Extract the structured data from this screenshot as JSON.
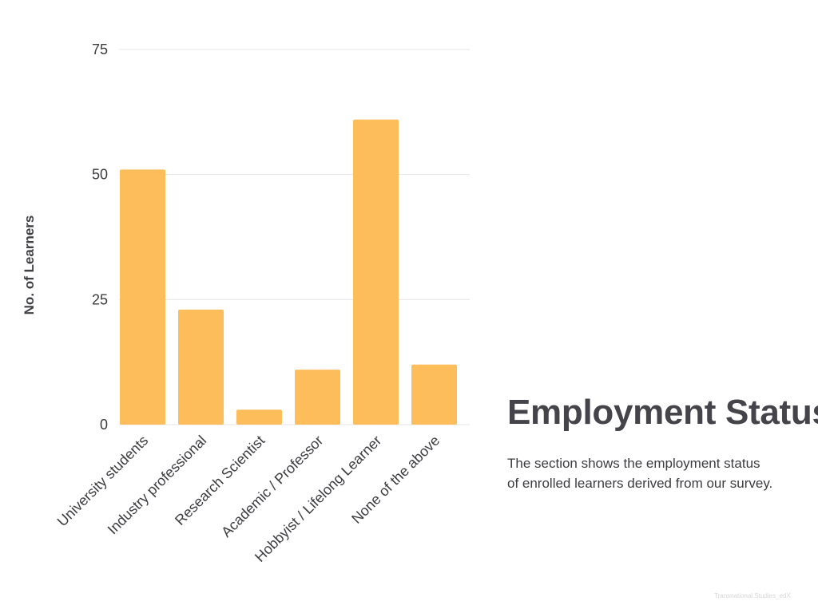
{
  "chart_data": {
    "type": "bar",
    "categories": [
      "University students",
      "Industry professional",
      "Research Scientist",
      "Academic / Professor",
      "Hobbyist / Lifelong Learner",
      "None of the above"
    ],
    "values": [
      51,
      23,
      3,
      11,
      61,
      12
    ],
    "ylabel": "No. of Learners",
    "xlabel": "",
    "ylim": [
      0,
      75
    ],
    "yticks": [
      0,
      25,
      50,
      75
    ],
    "grid": true,
    "bar_color": "#FDBD5B",
    "grid_color": "#E6E6E6"
  },
  "text": {
    "title": "Employment Status",
    "description_line1": "The section shows the employment status",
    "description_line2": "of enrolled learners derived from our survey.",
    "footnote": "Transnational Studies_edX"
  }
}
